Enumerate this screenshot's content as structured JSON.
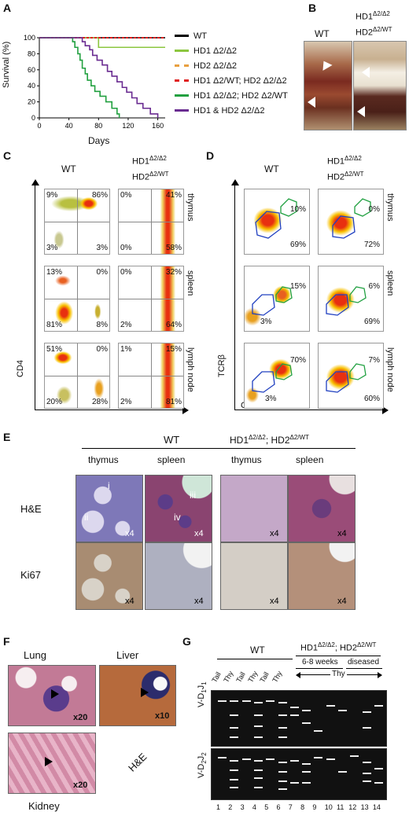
{
  "panel_labels": {
    "a": "A",
    "b": "B",
    "c": "C",
    "d": "D",
    "e": "E",
    "f": "F",
    "g": "G"
  },
  "panelA": {
    "ylabel": "Survival (%)",
    "xlabel": "Days",
    "yticks": [
      "100",
      "80",
      "60",
      "40",
      "20",
      "0"
    ],
    "xticks": [
      "0",
      "40",
      "80",
      "120",
      "160"
    ],
    "legend": [
      {
        "label": "WT",
        "color": "#000000",
        "dash": false
      },
      {
        "label": "HD1 Δ2/Δ2",
        "color": "#8cc63f",
        "dash": false
      },
      {
        "label": "HD2 Δ2/Δ2",
        "color": "#e8a040",
        "dash": true
      },
      {
        "label": "HD1 Δ2/WT; HD2 Δ2/Δ2",
        "color": "#e02020",
        "dash": true
      },
      {
        "label": "HD1 Δ2/Δ2; HD2 Δ2/WT",
        "color": "#22a040",
        "dash": false
      },
      {
        "label": "HD1 & HD2 Δ2/Δ2",
        "color": "#6a2c91",
        "dash": false
      }
    ]
  },
  "chart_data": {
    "type": "line",
    "xlabel": "Days",
    "ylabel": "Survival (%)",
    "xlim": [
      0,
      170
    ],
    "ylim": [
      0,
      100
    ],
    "series": [
      {
        "name": "WT",
        "color": "#000000",
        "x": [
          0,
          170
        ],
        "y": [
          100,
          100
        ]
      },
      {
        "name": "HD1 Δ2/Δ2",
        "color": "#8cc63f",
        "x": [
          0,
          80,
          80,
          170
        ],
        "y": [
          100,
          100,
          88,
          88
        ]
      },
      {
        "name": "HD2 Δ2/Δ2",
        "color": "#e8a040",
        "x": [
          0,
          170
        ],
        "y": [
          100,
          100
        ]
      },
      {
        "name": "HD1 Δ2/WT; HD2 Δ2/Δ2",
        "color": "#e02020",
        "x": [
          0,
          170
        ],
        "y": [
          100,
          100
        ]
      },
      {
        "name": "HD1 Δ2/Δ2; HD2 Δ2/WT",
        "color": "#22a040",
        "x": [
          0,
          45,
          48,
          52,
          55,
          58,
          62,
          65,
          70,
          75,
          82,
          90,
          98,
          105,
          108
        ],
        "y": [
          100,
          95,
          88,
          80,
          72,
          62,
          55,
          47,
          40,
          33,
          27,
          20,
          12,
          5,
          0
        ]
      },
      {
        "name": "HD1 & HD2 Δ2/Δ2",
        "color": "#6a2c91",
        "x": [
          0,
          58,
          62,
          68,
          72,
          78,
          85,
          92,
          98,
          105,
          112,
          118,
          125,
          132,
          140,
          150,
          160
        ],
        "y": [
          100,
          95,
          90,
          85,
          78,
          72,
          66,
          58,
          52,
          45,
          38,
          32,
          25,
          18,
          12,
          5,
          0
        ]
      }
    ]
  },
  "panelB": {
    "wt": "WT",
    "mut_line1": "HD1",
    "mut_sup1": "Δ2/Δ2",
    "mut_line2": "HD2",
    "mut_sup2": "Δ2/WT"
  },
  "panelC": {
    "wt": "WT",
    "mut_line1": "HD1",
    "mut_sup1": "Δ2/Δ2",
    "mut_line2": "HD2",
    "mut_sup2": "Δ2/WT",
    "ylabel": "CD4",
    "xlabel": "CD8",
    "tissues": [
      "thymus",
      "spleen",
      "lymph node"
    ],
    "wt_rows": [
      [
        "9%",
        "86%",
        "3%",
        "3%"
      ],
      [
        "13%",
        "0%",
        "81%",
        "8%"
      ],
      [
        "51%",
        "0%",
        "20%",
        "28%"
      ]
    ],
    "mut_rows": [
      [
        "0%",
        "41%",
        "0%",
        "58%"
      ],
      [
        "0%",
        "32%",
        "2%",
        "64%"
      ],
      [
        "1%",
        "15%",
        "2%",
        "81%"
      ]
    ]
  },
  "panelD": {
    "wt": "WT",
    "mut_line1": "HD1",
    "mut_sup1": "Δ2/Δ2",
    "mut_line2": "HD2",
    "mut_sup2": "Δ2/WT",
    "ylabel": "TCRβ",
    "xlabel": "CD5",
    "tissues": [
      "thymus",
      "spleen",
      "lymph node"
    ],
    "wt_rows": [
      [
        "10%",
        "69%"
      ],
      [
        "15%",
        "3%"
      ],
      [
        "70%",
        "3%"
      ]
    ],
    "mut_rows": [
      [
        "0%",
        "72%"
      ],
      [
        "6%",
        "69%"
      ],
      [
        "7%",
        "60%"
      ]
    ]
  },
  "panelE": {
    "wt": "WT",
    "mut": "HD1",
    "mut_sup1": "Δ2/Δ2",
    "mut_mid": "; HD2",
    "mut_sup2": "Δ2/WT",
    "cols": [
      "thymus",
      "spleen",
      "thymus",
      "spleen"
    ],
    "rows": [
      "H&E",
      "Ki67"
    ],
    "mag": "x4",
    "regions": [
      "i",
      "ii",
      "iii",
      "iv"
    ]
  },
  "panelF": {
    "lung": "Lung",
    "liver": "Liver",
    "kidney": "Kidney",
    "stain": "H&E",
    "mag_lung": "x20",
    "mag_liver": "x10",
    "mag_kidney": "x20"
  },
  "panelG": {
    "wt": "WT",
    "mut": "HD1",
    "mut_sup1": "Δ2/Δ2",
    "mut_mid": "; HD2",
    "mut_sup2": "Δ2/WT",
    "age1": "6-8 weeks",
    "age2": "diseased",
    "thy": "Thy",
    "lane_labels": [
      "Tail",
      "Thy",
      "Tail",
      "Thy",
      "Tail",
      "Thy"
    ],
    "row1": "V-D",
    "row1_sub1": "1",
    "row1_mid": "J",
    "row1_sub2": "1",
    "row2": "V-D",
    "row2_sub1": "2",
    "row2_mid": "J",
    "row2_sub2": "2",
    "lanes": [
      "1",
      "2",
      "3",
      "4",
      "5",
      "6",
      "7",
      "8",
      "9",
      "10",
      "11",
      "12",
      "13",
      "14"
    ]
  }
}
